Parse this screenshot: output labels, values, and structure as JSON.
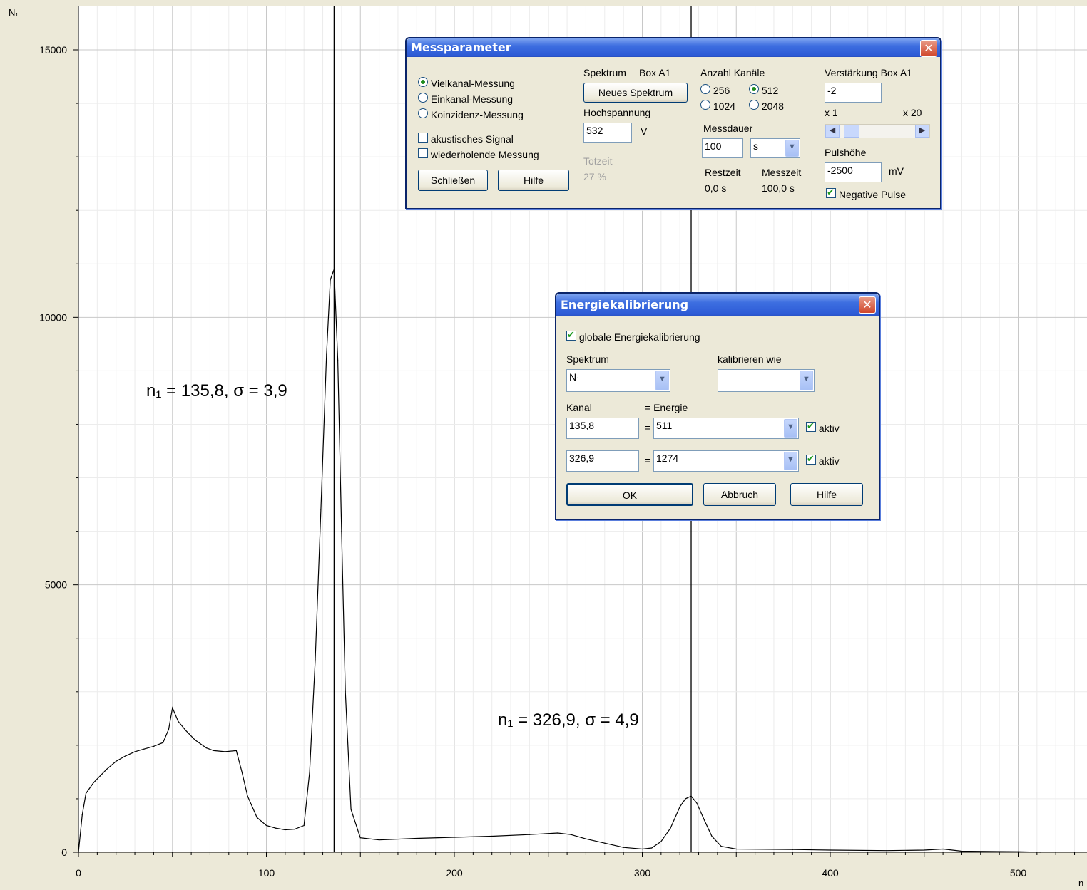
{
  "chart_data": {
    "type": "line",
    "ylabel": "N₁",
    "xlabel": "n",
    "xlim": [
      0,
      530
    ],
    "ylim": [
      0,
      15800
    ],
    "x_ticks": [
      0,
      100,
      200,
      300,
      400,
      500
    ],
    "y_ticks": [
      0,
      5000,
      10000,
      15000
    ],
    "grid": true,
    "markers": [
      136,
      326
    ],
    "annotations": [
      {
        "text": "n₁ =  135,8,   σ = 3,9",
        "x": 135.8,
        "y": 8700
      },
      {
        "text": "n₁ =  326,9,   σ = 4,9",
        "x": 326.9,
        "y": 2500
      }
    ],
    "series": [
      {
        "x": [
          0,
          2,
          4,
          8,
          15,
          20,
          25,
          30,
          35,
          40,
          45,
          48,
          50,
          53,
          57,
          62,
          68,
          72,
          78,
          84,
          87,
          90,
          95,
          100,
          105,
          110,
          115,
          120,
          123,
          126,
          129,
          132,
          134,
          136,
          138,
          140,
          142,
          145,
          150,
          160,
          180,
          200,
          220,
          240,
          255,
          262,
          270,
          280,
          290,
          300,
          305,
          310,
          315,
          320,
          323,
          326,
          329,
          333,
          337,
          342,
          350,
          380,
          400,
          430,
          450,
          460,
          470,
          500,
          512
        ],
        "y": [
          0,
          700,
          1100,
          1300,
          1550,
          1700,
          1800,
          1880,
          1930,
          1980,
          2050,
          2300,
          2700,
          2450,
          2280,
          2100,
          1950,
          1900,
          1880,
          1900,
          1500,
          1050,
          650,
          500,
          450,
          420,
          430,
          500,
          1500,
          3600,
          6400,
          9300,
          10700,
          10900,
          9200,
          6000,
          3000,
          800,
          270,
          230,
          260,
          280,
          300,
          330,
          360,
          330,
          250,
          170,
          90,
          60,
          80,
          200,
          450,
          850,
          1000,
          1050,
          920,
          600,
          300,
          110,
          60,
          50,
          40,
          30,
          40,
          60,
          20,
          10,
          0
        ]
      }
    ]
  },
  "messparameter": {
    "title": "Messparameter",
    "modes": [
      "Vielkanal-Messung",
      "Einkanal-Messung",
      "Koinzidenz-Messung"
    ],
    "mode_selected": 0,
    "acoustic": "akustisches Signal",
    "repeat": "wiederholende Messung",
    "close_button": "Schließen",
    "help_button": "Hilfe",
    "spektrum_label": "Spektrum",
    "box_label": "Box A1",
    "new_spectrum_button": "Neues Spektrum",
    "hv_label": "Hochspannung",
    "hv_value": "532",
    "hv_unit": "V",
    "totzeit_label": "Totzeit",
    "totzeit_value": "27 %",
    "channels_label": "Anzahl Kanäle",
    "channels": [
      "256",
      "512",
      "1024",
      "2048"
    ],
    "channels_selected": "512",
    "duration_label": "Messdauer",
    "duration_value": "100",
    "duration_unit": "s",
    "restzeit_label": "Restzeit",
    "restzeit_value": "0,0 s",
    "messzeit_label": "Messzeit",
    "messzeit_value": "100,0 s",
    "gain_label": "Verstärkung Box A1",
    "gain_value": "-2",
    "gain_min": "x 1",
    "gain_max": "x 20",
    "pulse_label": "Pulshöhe",
    "pulse_value": "-2500",
    "pulse_unit": "mV",
    "negative_pulse": "Negative Pulse",
    "negative_pulse_checked": true
  },
  "energiekalibrierung": {
    "title": "Energiekalibrierung",
    "global_label": "globale Energiekalibrierung",
    "global_checked": true,
    "spektrum_label": "Spektrum",
    "spektrum_value": "N₁",
    "kalibrieren_label": "kalibrieren wie",
    "kalibrieren_value": "",
    "kanal_label": "Kanal",
    "energie_label": "= Energie",
    "row1_kanal": "135,8",
    "row1_energie": "511",
    "row2_kanal": "326,9",
    "row2_energie": "1274",
    "eq": "=",
    "aktiv_label": "aktiv",
    "ok_button": "OK",
    "abbruch_button": "Abbruch",
    "hilfe_button": "Hilfe"
  },
  "icons": {
    "close": "close-icon",
    "dropdown": "chevron-down-icon",
    "scroll_left": "chevron-left-icon",
    "scroll_right": "chevron-right-icon"
  }
}
